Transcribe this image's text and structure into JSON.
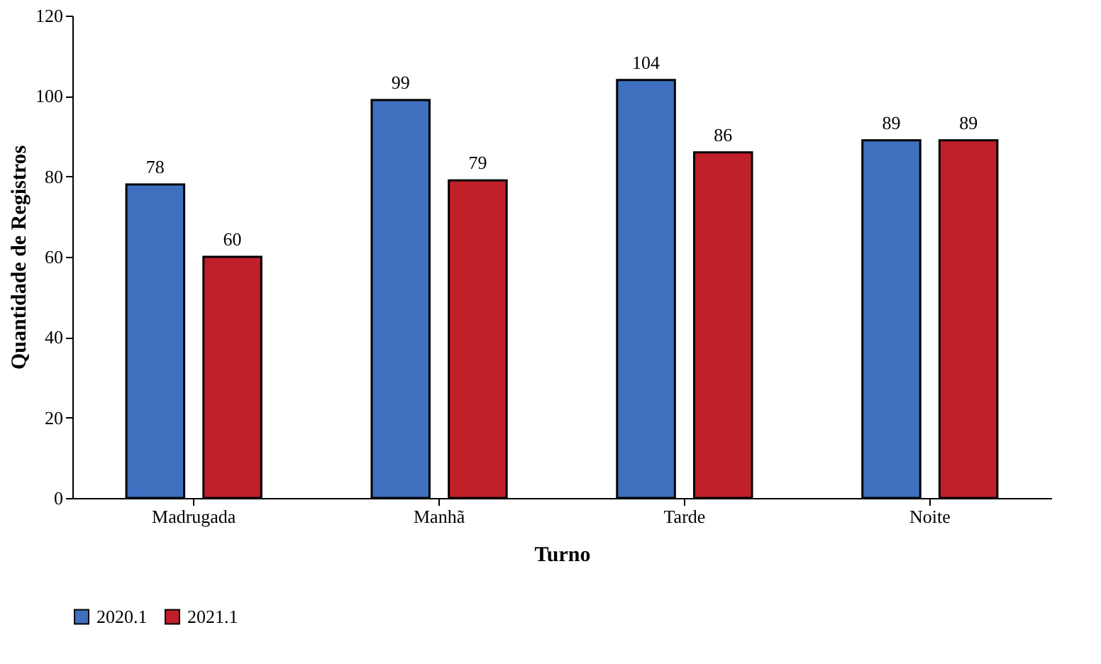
{
  "chart_data": {
    "type": "bar",
    "xlabel": "Turno",
    "ylabel": "Quantidade de Registros",
    "categories": [
      "Madrugada",
      "Manhã",
      "Tarde",
      "Noite"
    ],
    "series": [
      {
        "name": "2020.1",
        "color": "#3f6fbf",
        "values": [
          78,
          99,
          104,
          89
        ]
      },
      {
        "name": "2021.1",
        "color": "#c0202a",
        "values": [
          60,
          79,
          86,
          89
        ]
      }
    ],
    "ylim": [
      0,
      120
    ],
    "yticks": [
      0,
      20,
      40,
      60,
      80,
      100,
      120
    ],
    "grid": false,
    "legend": "bottom",
    "data_labels": true
  }
}
